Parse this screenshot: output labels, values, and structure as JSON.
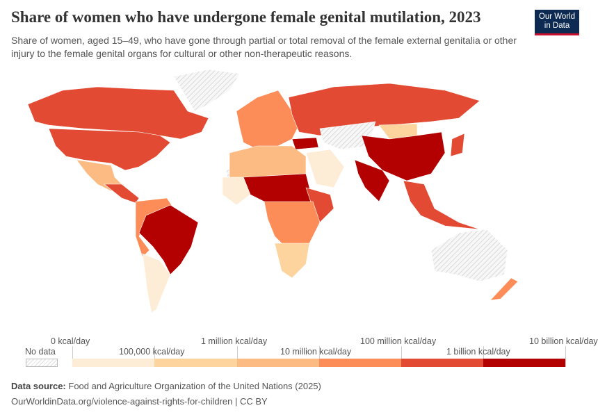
{
  "header": {
    "title": "Share of women who have undergone female genital mutilation, 2023",
    "subtitle": "Share of women, aged 15–49, who have gone through partial or total removal of the female external genitalia or other injury to the female genital organs for cultural or other non-therapeutic reasons.",
    "logo_text": "Our World in Data"
  },
  "legend": {
    "no_data_label": "No data",
    "labels": [
      "0 kcal/day",
      "100,000 kcal/day",
      "1 million kcal/day",
      "10 million kcal/day",
      "100 million kcal/day",
      "1 billion kcal/day",
      "10 billion kcal/day"
    ],
    "colors": [
      "#feedd6",
      "#fdd49e",
      "#fdbb84",
      "#fc8d59",
      "#e34a33",
      "#b30000"
    ],
    "no_data_pattern_color": "#dddddd"
  },
  "footer": {
    "source_label": "Data source:",
    "source": "Food and Agriculture Organization of the United Nations (2025)",
    "url_license": "OurWorldinData.org/violence-against-rights-for-children | CC BY"
  }
}
